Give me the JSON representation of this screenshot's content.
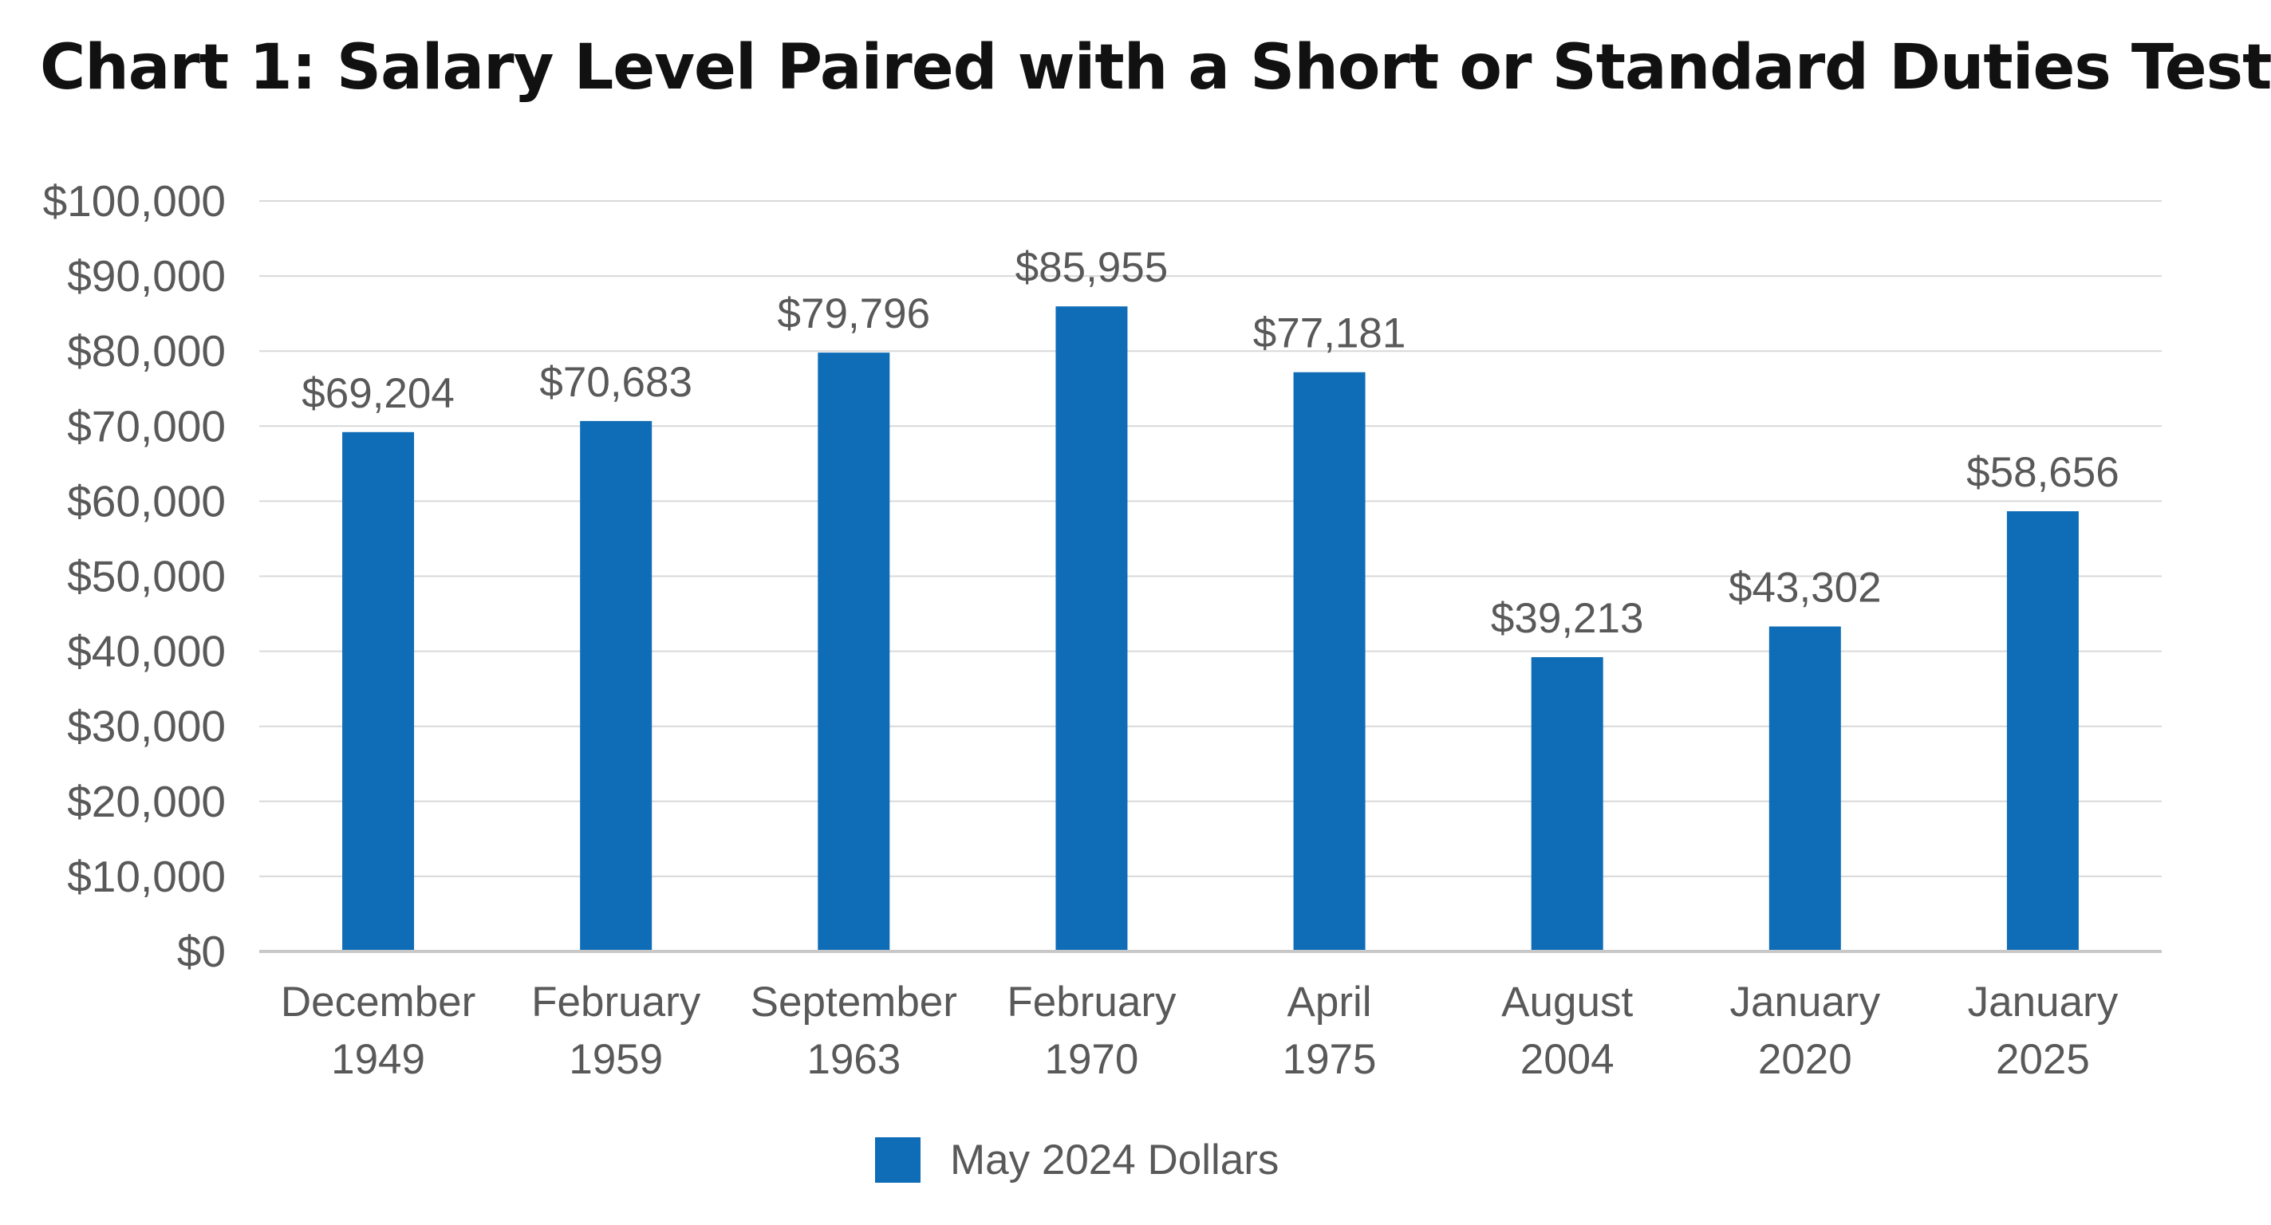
{
  "title": "Chart 1: Salary Level Paired with a Short or Standard Duties Test",
  "chart_data": {
    "type": "bar",
    "title": "Chart 1: Salary Level Paired with a Short or Standard Duties Test",
    "categories": [
      [
        "December",
        "1949"
      ],
      [
        "February",
        "1959"
      ],
      [
        "September",
        "1963"
      ],
      [
        "February",
        "1970"
      ],
      [
        "April",
        "1975"
      ],
      [
        "August",
        "2004"
      ],
      [
        "January",
        "2020"
      ],
      [
        "January",
        "2025"
      ]
    ],
    "series": [
      {
        "name": "May 2024 Dollars",
        "values": [
          69204,
          70683,
          79796,
          85955,
          77181,
          39213,
          43302,
          58656
        ],
        "labels": [
          "$69,204",
          "$70,683",
          "$79,796",
          "$85,955",
          "$77,181",
          "$39,213",
          "$43,302",
          "$58,656"
        ],
        "color": "#0F6CB6"
      }
    ],
    "ylim": [
      0,
      100000
    ],
    "yticks": [
      0,
      10000,
      20000,
      30000,
      40000,
      50000,
      60000,
      70000,
      80000,
      90000,
      100000
    ],
    "ytick_labels": [
      "$0",
      "$10,000",
      "$20,000",
      "$30,000",
      "$40,000",
      "$50,000",
      "$60,000",
      "$70,000",
      "$80,000",
      "$90,000",
      "$100,000"
    ],
    "xlabel": "",
    "ylabel": "",
    "grid": true,
    "legend": "bottom",
    "colors": {
      "bar": "#0F6CB6",
      "grid": "#D9D9D9",
      "axis": "#C8C8C8",
      "text": "#595959"
    }
  }
}
